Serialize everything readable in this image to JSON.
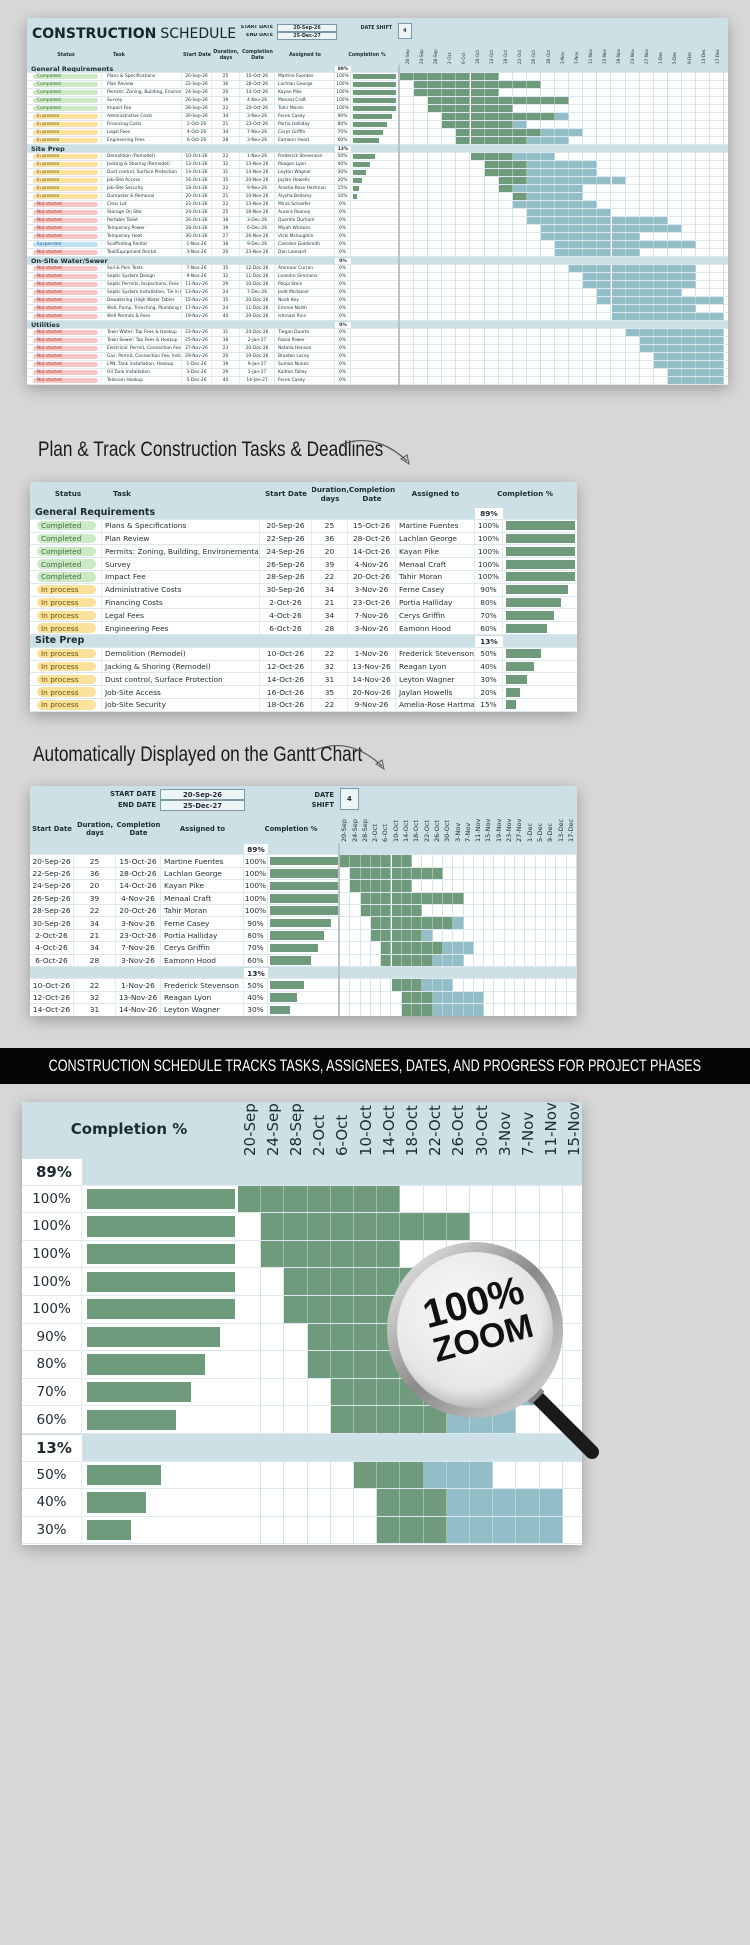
{
  "header": {
    "title_bold": "CONSTRUCTION",
    "title_light": "SCHEDULE",
    "start_date_label": "START DATE",
    "start_date": "20-Sep-26",
    "end_date_label": "END DATE",
    "end_date": "25-Dec-27",
    "date_shift_label": "DATE SHIFT",
    "date_shift": "4"
  },
  "columns": {
    "status": "Status",
    "task": "Task",
    "start": "Start Date",
    "duration": "Duration, days",
    "completion": "Completion Date",
    "assigned": "Assigned to",
    "pct": "Completion %"
  },
  "timeline": [
    "20-Sep",
    "24-Sep",
    "28-Sep",
    "2-Oct",
    "6-Oct",
    "10-Oct",
    "14-Oct",
    "18-Oct",
    "22-Oct",
    "26-Oct",
    "30-Oct",
    "3-Nov",
    "7-Nov",
    "11-Nov",
    "15-Nov",
    "19-Nov",
    "23-Nov",
    "27-Nov",
    "1-Dec",
    "5-Dec",
    "9-Dec",
    "13-Dec",
    "17-Dec"
  ],
  "colors": {
    "done": "#6f9b7c",
    "remaining": "#93bec8",
    "header_bg": "#cde0e5",
    "Completed": "#cbe9c4",
    "In process": "#fbe19b",
    "Not started": "#f8c6c3",
    "Suspended": "#bfe0f1"
  },
  "sections": [
    {
      "name": "General Requirements",
      "pct": "89%",
      "tasks": [
        {
          "status": "Completed",
          "task": "Plans & Specifications",
          "start": "20-Sep-26",
          "duration": "25",
          "end": "15-Oct-26",
          "assigned": "Martine Fuentes",
          "pct": "100%"
        },
        {
          "status": "Completed",
          "task": "Plan Review",
          "start": "22-Sep-26",
          "duration": "36",
          "end": "28-Oct-26",
          "assigned": "Lachlan George",
          "pct": "100%"
        },
        {
          "status": "Completed",
          "task": "Permits: Zoning, Building, Environemental",
          "start": "24-Sep-26",
          "duration": "20",
          "end": "14-Oct-26",
          "assigned": "Kayan Pike",
          "pct": "100%"
        },
        {
          "status": "Completed",
          "task": "Survey",
          "start": "26-Sep-26",
          "duration": "39",
          "end": "4-Nov-26",
          "assigned": "Menaal Craft",
          "pct": "100%"
        },
        {
          "status": "Completed",
          "task": "Impact Fee",
          "start": "28-Sep-26",
          "duration": "22",
          "end": "20-Oct-26",
          "assigned": "Tahir Moran",
          "pct": "100%"
        },
        {
          "status": "In process",
          "task": "Administrative Costs",
          "start": "30-Sep-26",
          "duration": "34",
          "end": "3-Nov-26",
          "assigned": "Ferne Casey",
          "pct": "90%"
        },
        {
          "status": "In process",
          "task": "Financing Costs",
          "start": "2-Oct-26",
          "duration": "21",
          "end": "23-Oct-26",
          "assigned": "Portia Halliday",
          "pct": "80%"
        },
        {
          "status": "In process",
          "task": "Legal Fees",
          "start": "4-Oct-26",
          "duration": "34",
          "end": "7-Nov-26",
          "assigned": "Cerys Griffin",
          "pct": "70%"
        },
        {
          "status": "In process",
          "task": "Engineering Fees",
          "start": "6-Oct-26",
          "duration": "28",
          "end": "3-Nov-26",
          "assigned": "Eamonn Hood",
          "pct": "60%"
        }
      ]
    },
    {
      "name": "Site Prep",
      "pct": "13%",
      "tasks": [
        {
          "status": "In process",
          "task": "Demolition (Remodel)",
          "start": "10-Oct-26",
          "duration": "22",
          "end": "1-Nov-26",
          "assigned": "Frederick Stevenson",
          "pct": "50%"
        },
        {
          "status": "In process",
          "task": "Jacking & Shoring (Remodel)",
          "start": "12-Oct-26",
          "duration": "32",
          "end": "13-Nov-26",
          "assigned": "Reagan Lyon",
          "pct": "40%"
        },
        {
          "status": "In process",
          "task": "Dust control, Surface Protection",
          "start": "14-Oct-26",
          "duration": "31",
          "end": "14-Nov-26",
          "assigned": "Leyton Wagner",
          "pct": "30%"
        },
        {
          "status": "In process",
          "task": "Job-Site Access",
          "start": "16-Oct-26",
          "duration": "35",
          "end": "20-Nov-26",
          "assigned": "Jaylan Howells",
          "pct": "20%"
        },
        {
          "status": "In process",
          "task": "Job-Site Security",
          "start": "18-Oct-26",
          "duration": "22",
          "end": "9-Nov-26",
          "assigned": "Amelia-Rose Hartman",
          "pct": "15%"
        },
        {
          "status": "In process",
          "task": "Dumpster & Removal",
          "start": "20-Oct-26",
          "duration": "21",
          "end": "10-Nov-26",
          "assigned": "Aiysha Bellamy",
          "pct": "10%"
        },
        {
          "status": "Not started",
          "task": "Clear Lot",
          "start": "22-Oct-26",
          "duration": "22",
          "end": "13-Nov-26",
          "assigned": "Mirza Schaefer",
          "pct": "0%"
        },
        {
          "status": "Not started",
          "task": "Storage On Site",
          "start": "24-Oct-26",
          "duration": "25",
          "end": "18-Nov-26",
          "assigned": "Aurora Rooney",
          "pct": "0%"
        },
        {
          "status": "Not started",
          "task": "Portable Toilet",
          "start": "26-Oct-26",
          "duration": "38",
          "end": "3-Dec-26",
          "assigned": "Quentin Durham",
          "pct": "0%"
        },
        {
          "status": "Not started",
          "task": "Temporary Power",
          "start": "28-Oct-26",
          "duration": "39",
          "end": "6-Dec-26",
          "assigned": "Miyah Wickens",
          "pct": "0%"
        },
        {
          "status": "Not started",
          "task": "Temporary Heat",
          "start": "30-Oct-26",
          "duration": "27",
          "end": "26-Nov-26",
          "assigned": "Vicki Mcloughlin",
          "pct": "0%"
        },
        {
          "status": "Suspended",
          "task": "Scaffolding Rental",
          "start": "1-Nov-26",
          "duration": "38",
          "end": "9-Dec-26",
          "assigned": "Camden Goldsmith",
          "pct": "0%"
        },
        {
          "status": "Not started",
          "task": "Tool/Equipment Rental",
          "start": "3-Nov-26",
          "duration": "20",
          "end": "23-Nov-26",
          "assigned": "Dan Leonard",
          "pct": "0%"
        }
      ]
    },
    {
      "name": "On-Site Water/Sewer",
      "pct": "0%",
      "tasks": [
        {
          "status": "Not started",
          "task": "Soil & Perc Tests",
          "start": "7-Nov-26",
          "duration": "35",
          "end": "12-Dec-26",
          "assigned": "Ammaar Curran",
          "pct": "0%"
        },
        {
          "status": "Not started",
          "task": "Septic System Design",
          "start": "9-Nov-26",
          "duration": "32",
          "end": "11-Dec-26",
          "assigned": "Leandro Simmons",
          "pct": "0%"
        },
        {
          "status": "Not started",
          "task": "Septic Permits, Inspections, Fees",
          "start": "11-Nov-26",
          "duration": "29",
          "end": "10-Dec-26",
          "assigned": "Pooja Stein",
          "pct": "0%"
        },
        {
          "status": "Not started",
          "task": "Septic System Installation, Tie in to House",
          "start": "13-Nov-26",
          "duration": "24",
          "end": "7-Dec-26",
          "assigned": "Jedd Mcdaniel",
          "pct": "0%"
        },
        {
          "status": "Not started",
          "task": "Dewatering (High Water Table)",
          "start": "15-Nov-26",
          "duration": "35",
          "end": "20-Dec-26",
          "assigned": "Noah Key",
          "pct": "0%"
        },
        {
          "status": "Not started",
          "task": "Well, Pump, Trenching, Plumbing to House",
          "start": "17-Nov-26",
          "duration": "24",
          "end": "11-Dec-26",
          "assigned": "Emmie North",
          "pct": "0%"
        },
        {
          "status": "Not started",
          "task": "Well Permits & Fees",
          "start": "19-Nov-26",
          "duration": "40",
          "end": "29-Dec-26",
          "assigned": "Ishmael Rice",
          "pct": "0%"
        }
      ]
    },
    {
      "name": "Utilities",
      "pct": "0%",
      "tasks": [
        {
          "status": "Not started",
          "task": "Town Water: Tap Fees & Hookup",
          "start": "23-Nov-26",
          "duration": "31",
          "end": "24-Dec-26",
          "assigned": "Tiegan Duarte",
          "pct": "0%"
        },
        {
          "status": "Not started",
          "task": "Town Sewer: Tap Fees & Hookup",
          "start": "25-Nov-26",
          "duration": "38",
          "end": "2-Jan-27",
          "assigned": "Faisal Power",
          "pct": "0%"
        },
        {
          "status": "Not started",
          "task": "Electrical: Permit, Connection Fee, Installation",
          "start": "27-Nov-26",
          "duration": "23",
          "end": "20-Dec-26",
          "assigned": "Natalia Henson",
          "pct": "0%"
        },
        {
          "status": "Not started",
          "task": "Gas: Permit, Connection Fee, Installation",
          "start": "29-Nov-26",
          "duration": "20",
          "end": "19-Dec-26",
          "assigned": "Braiden Lacey",
          "pct": "0%"
        },
        {
          "status": "Not started",
          "task": "LPN: Tank installation, Hookup",
          "start": "1-Dec-26",
          "duration": "39",
          "end": "9-Jan-27",
          "assigned": "Suman Nunez",
          "pct": "0%"
        },
        {
          "status": "Not started",
          "task": "Oil Tank Installation",
          "start": "3-Dec-26",
          "duration": "29",
          "end": "1-Jan-27",
          "assigned": "Kaitlan Talley",
          "pct": "0%"
        },
        {
          "status": "Not started",
          "task": "Telecom Hookup",
          "start": "5-Dec-26",
          "duration": "40",
          "end": "14-Jan-27",
          "assigned": "Ferne Casey",
          "pct": "0%"
        }
      ]
    }
  ],
  "captions": {
    "plan": "Plan & Track Construction Tasks & Deadlines",
    "auto": "Automatically Displayed on the Gantt Chart",
    "banner": "CONSTRUCTION SCHEDULE TRACKS TASKS, ASSIGNEES, DATES, AND PROGRESS FOR PROJECT PHASES",
    "zoom_pct": "100%",
    "zoom_word": "ZOOM"
  }
}
